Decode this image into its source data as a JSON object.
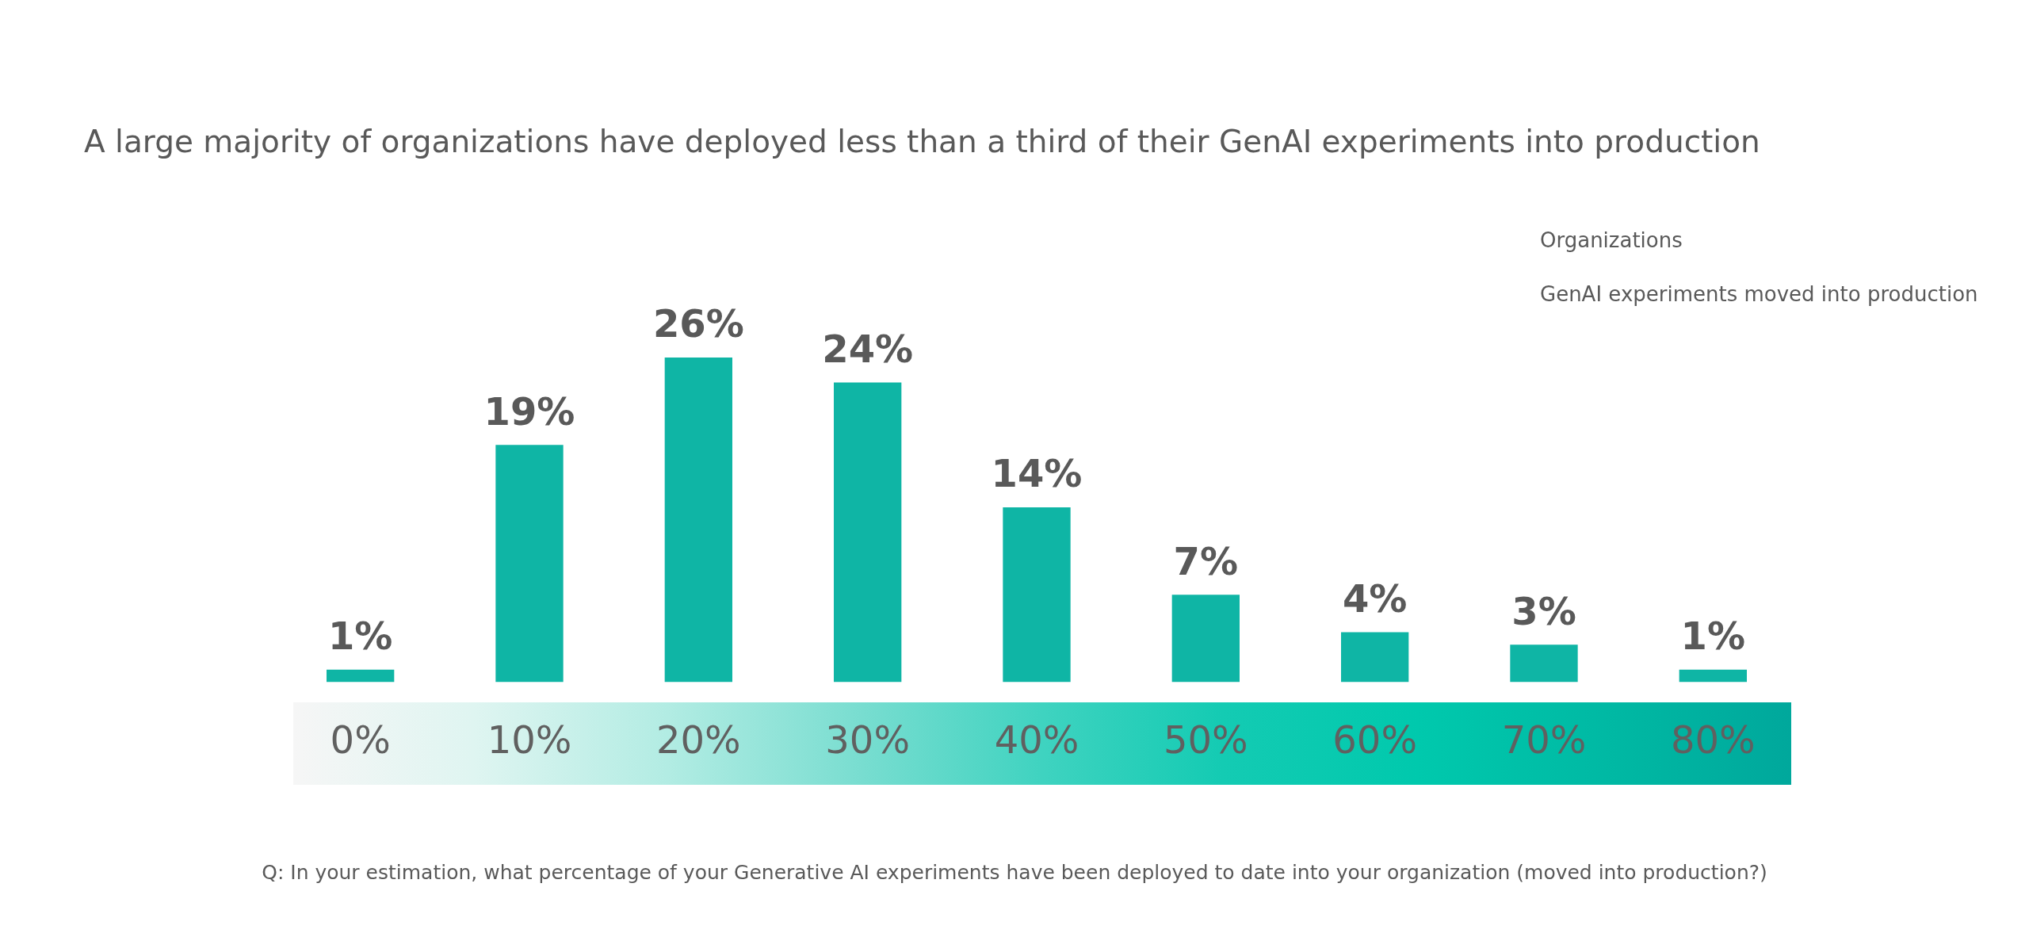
{
  "chart_data": {
    "type": "bar",
    "title": "A large majority of organizations have deployed less than a third of their GenAI experiments into production",
    "categories": [
      "0%",
      "10%",
      "20%",
      "30%",
      "40%",
      "50%",
      "60%",
      "70%",
      "80%"
    ],
    "values": [
      1,
      19,
      26,
      24,
      14,
      7,
      4,
      3,
      1
    ],
    "color": "#0fb5a5",
    "value_labels": [
      "1%",
      "19%",
      "26%",
      "24%",
      "14%",
      "7%",
      "4%",
      "3%",
      "1%"
    ],
    "annotations": [
      "Organizations",
      "GenAI experiments moved into production",
      "Q: In your estimation, what percentage of your Generative AI experiments have been deployed to date into your organization (moved into production?)"
    ]
  }
}
